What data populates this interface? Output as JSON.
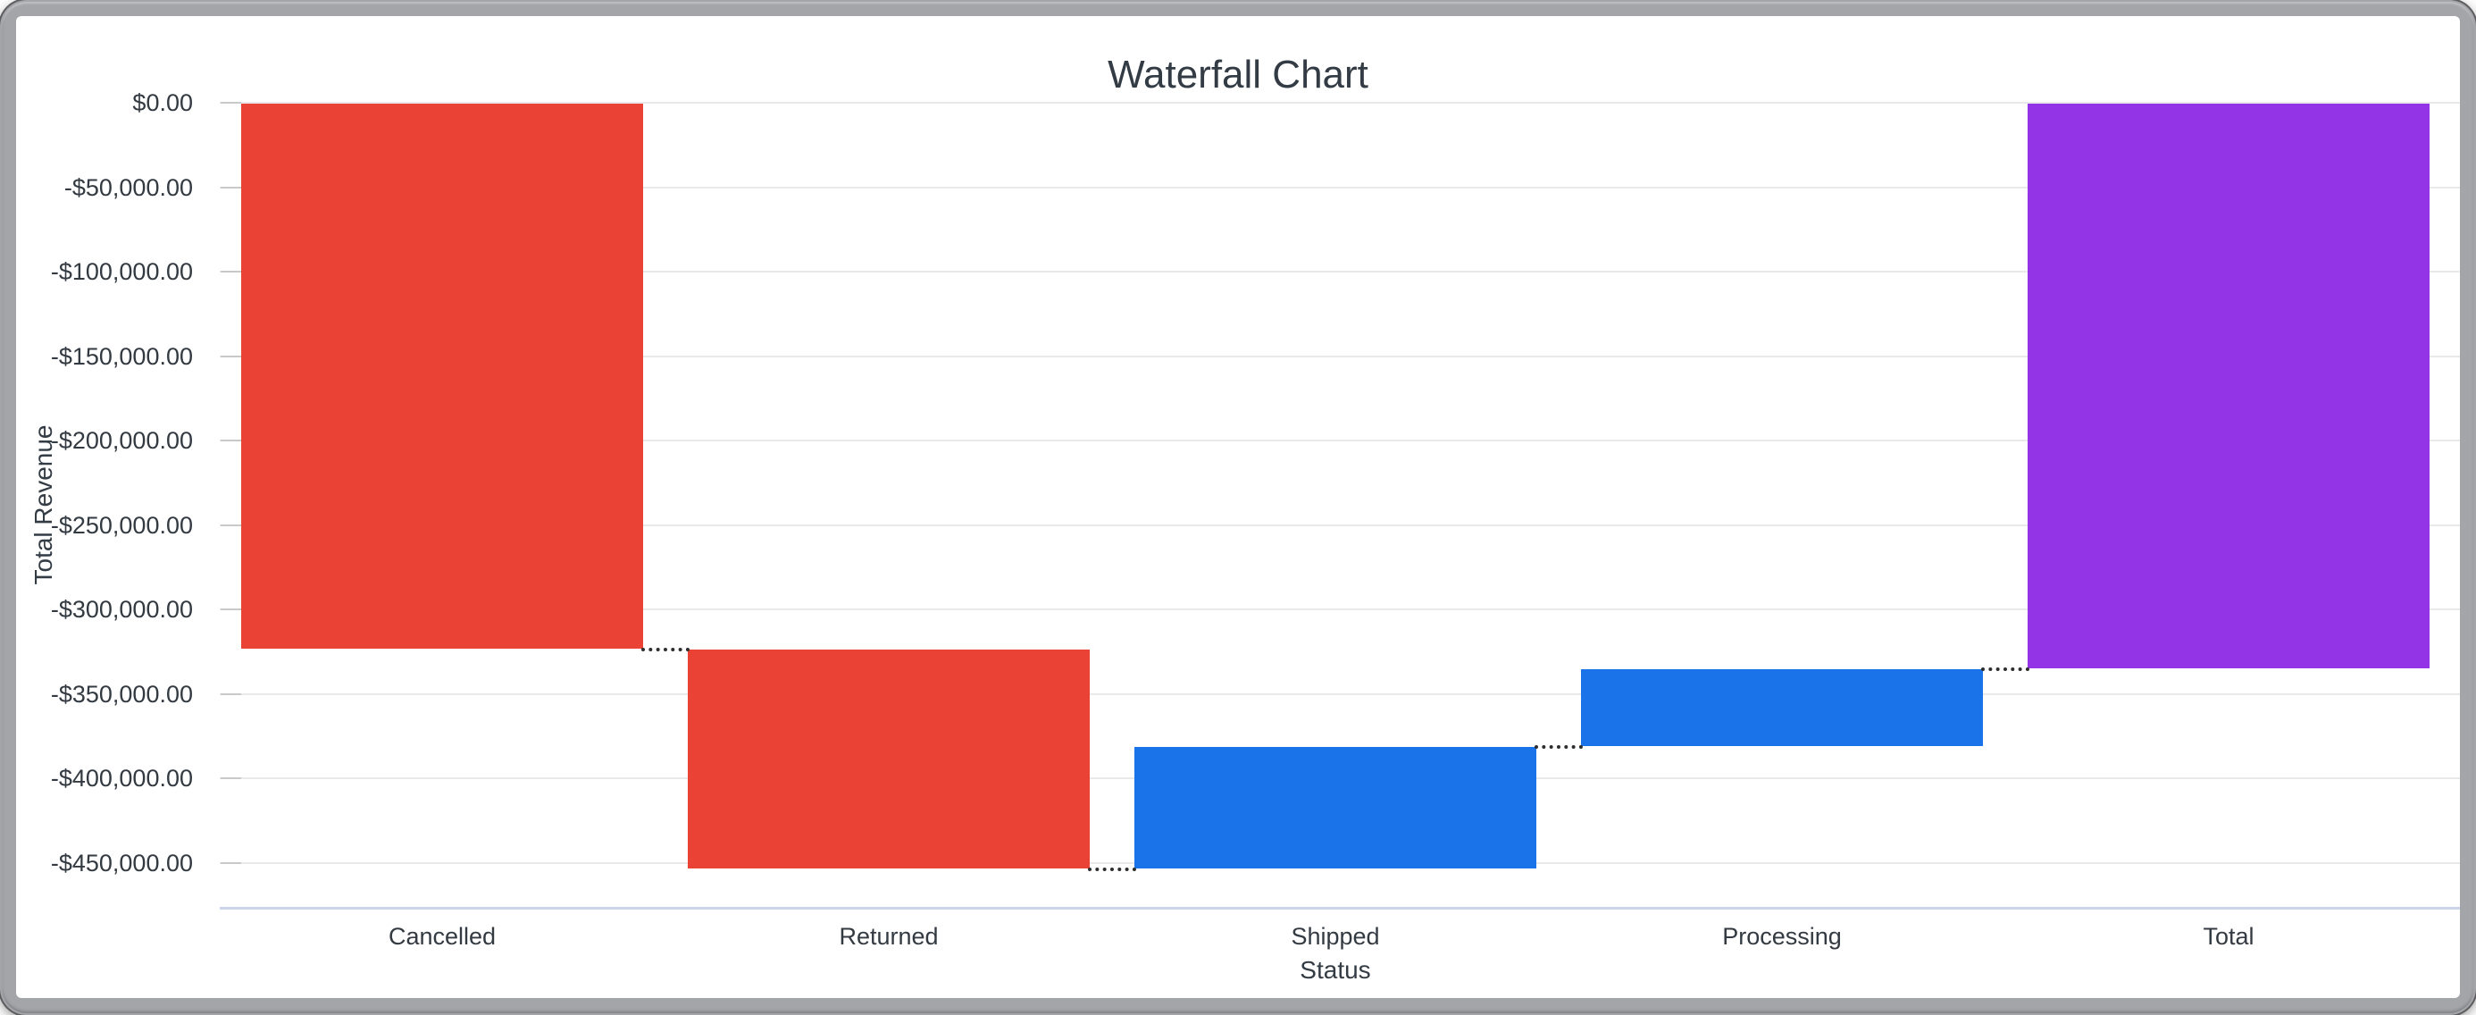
{
  "window": {
    "type": "screenshot-window-frame"
  },
  "chart_data": {
    "type": "waterfall",
    "title": "Waterfall Chart",
    "xlabel": "Status",
    "ylabel": "Total Revenue",
    "categories": [
      "Cancelled",
      "Returned",
      "Shipped",
      "Processing",
      "Total"
    ],
    "values": [
      -323500,
      -129700,
      72500,
      45600,
      -335100
    ],
    "cumulative": [
      {
        "label": "Cancelled",
        "start": 0,
        "end": -323500
      },
      {
        "label": "Returned",
        "start": -323500,
        "end": -453200
      },
      {
        "label": "Shipped",
        "start": -453200,
        "end": -380700
      },
      {
        "label": "Processing",
        "start": -380700,
        "end": -335100
      },
      {
        "label": "Total",
        "start": 0,
        "end": -335100
      }
    ],
    "bar_colors": [
      "#ea4335",
      "#ea4335",
      "#1a73e8",
      "#1a73e8",
      "#9334e6"
    ],
    "y_ticks": [
      0,
      -50000,
      -100000,
      -150000,
      -200000,
      -250000,
      -300000,
      -350000,
      -400000,
      -450000
    ],
    "y_tick_labels": [
      "$0.00",
      "-$50,000.00",
      "-$100,000.00",
      "-$150,000.00",
      "-$200,000.00",
      "-$250,000.00",
      "-$300,000.00",
      "-$350,000.00",
      "-$400,000.00",
      "-$450,000.00"
    ],
    "ylim": [
      -477000,
      0
    ],
    "grid": true,
    "legend": "none",
    "connector_style": "dotted",
    "colors": {
      "negative": "#ea4335",
      "positive": "#1a73e8",
      "total": "#9334e6",
      "gridline": "#e9e9e9",
      "tick_stub": "#c9c9c9",
      "axis_baseline": "#ccd6ea",
      "connector": "#2e2e2e",
      "label_text": "#333a41",
      "title_text": "#333b44",
      "frame": "#a4a5a9"
    }
  }
}
